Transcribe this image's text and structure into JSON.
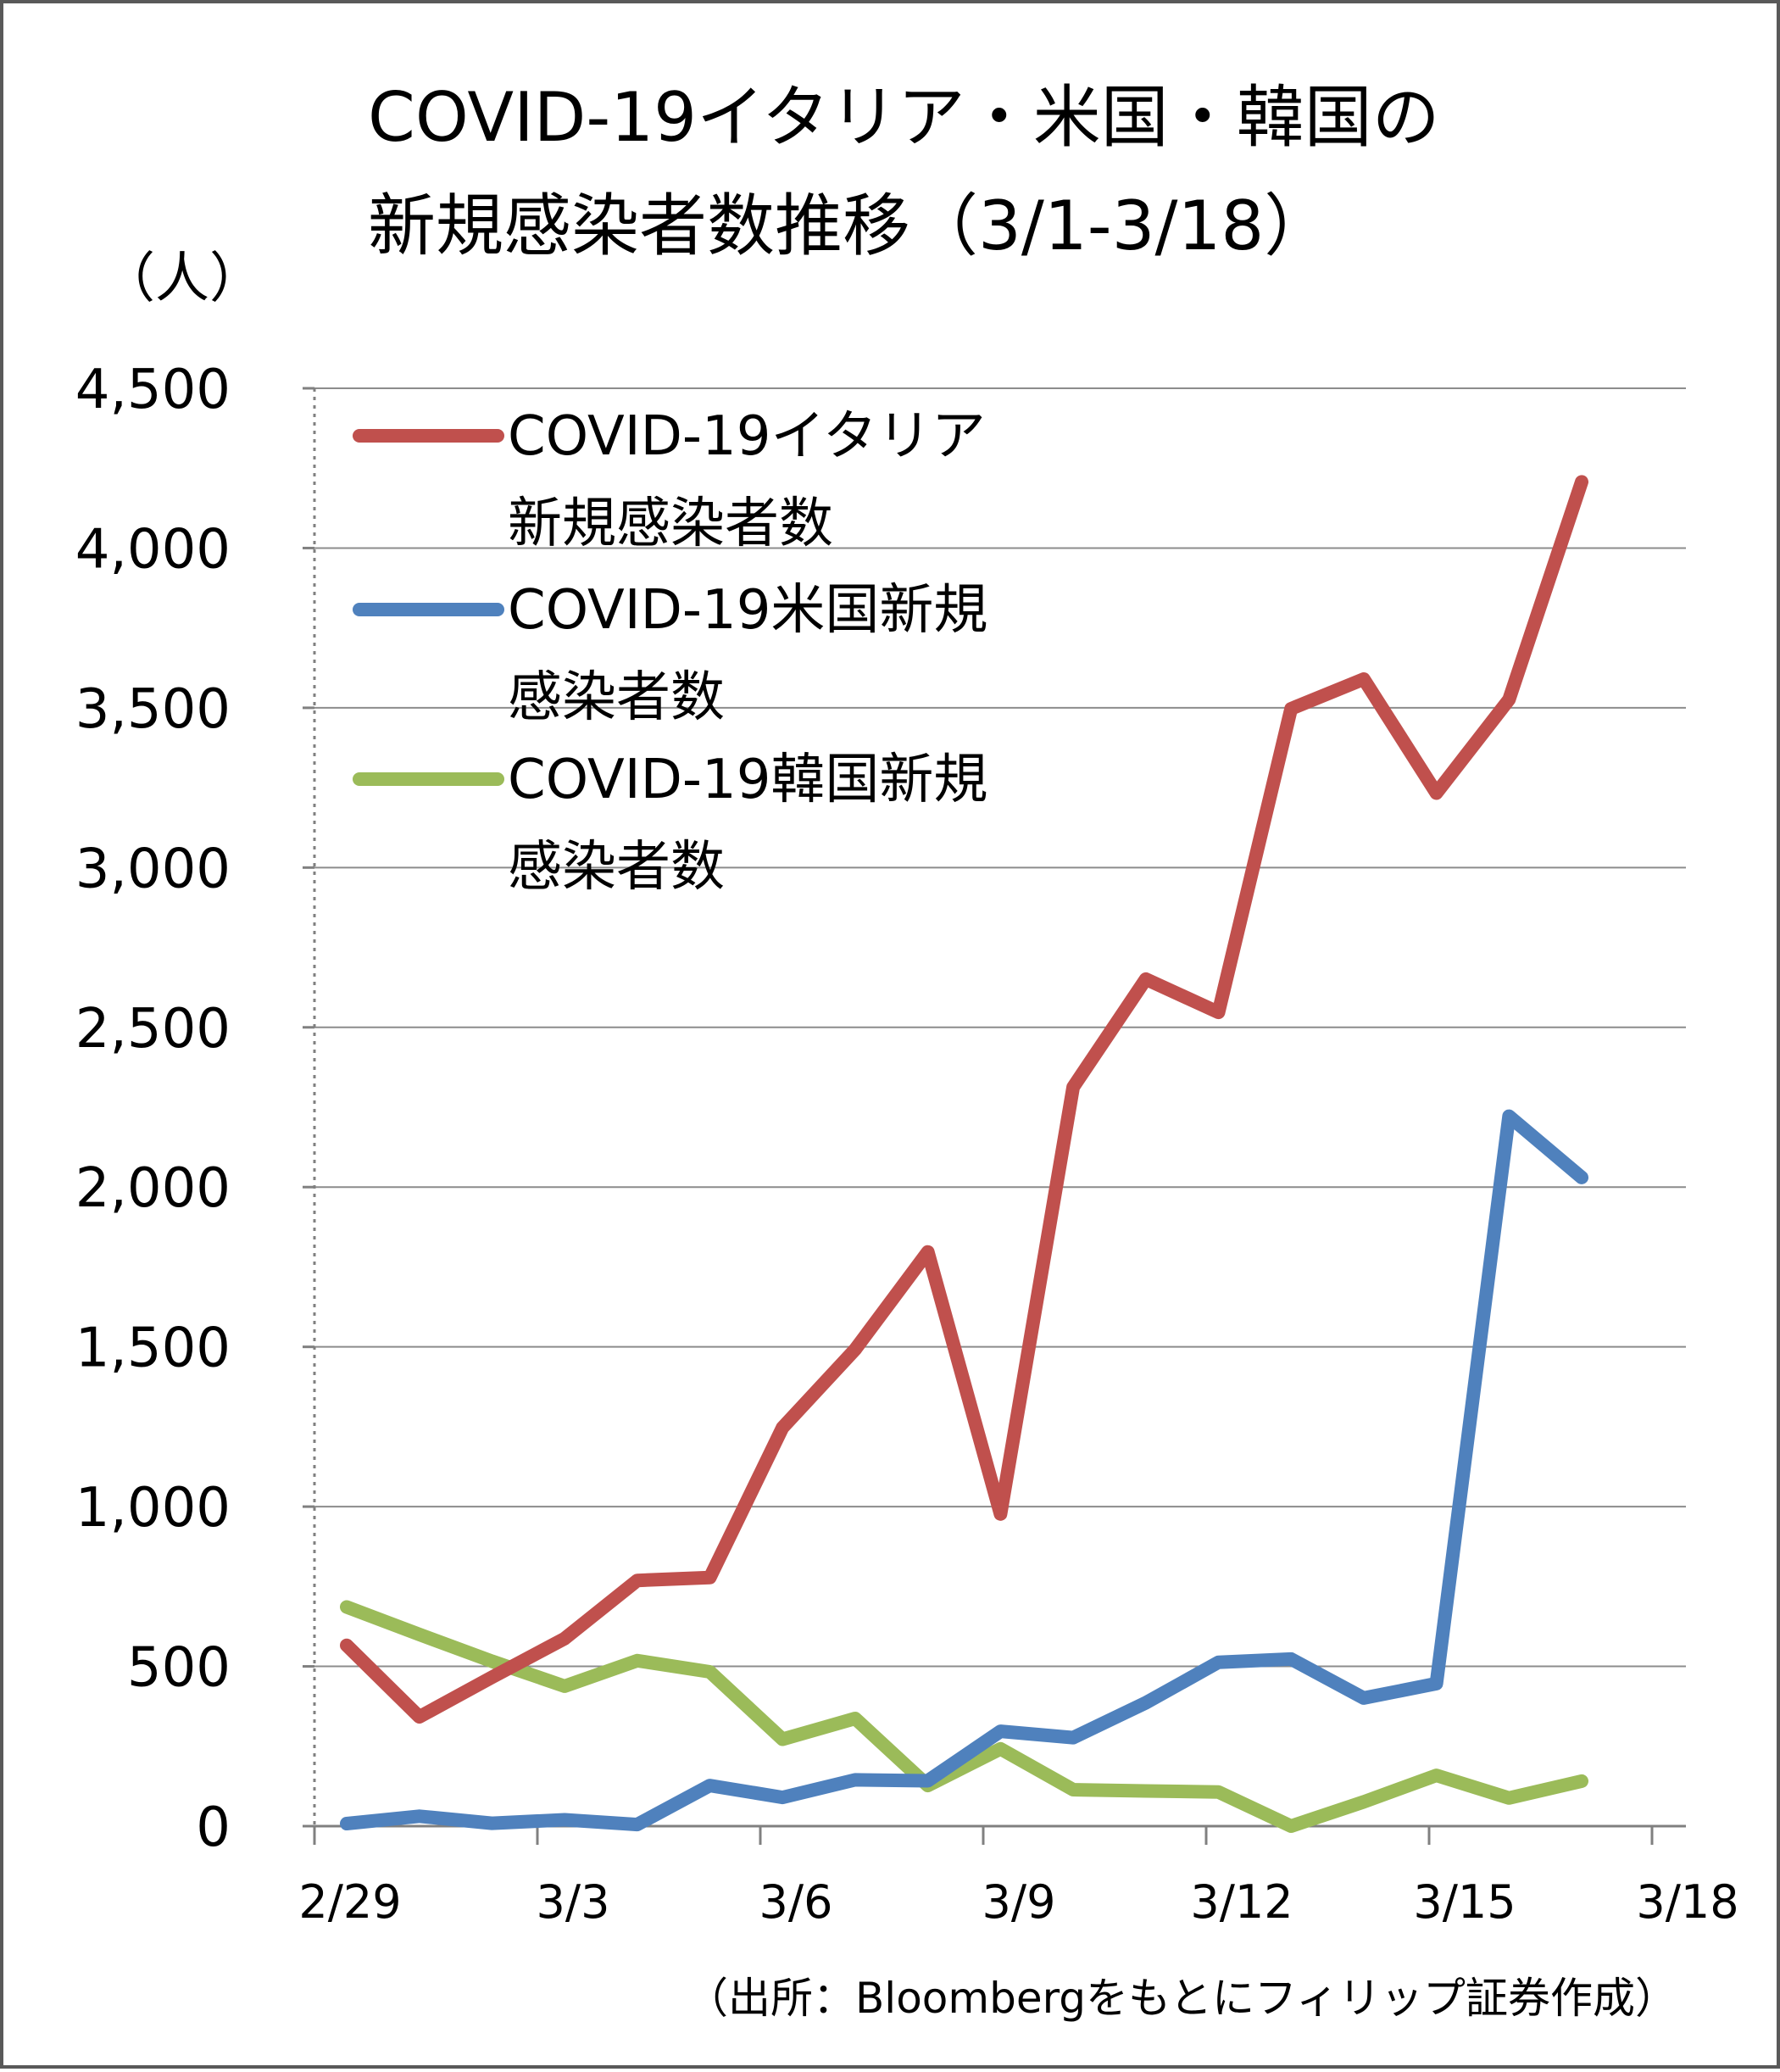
{
  "chart_data": {
    "type": "line",
    "title": "COVID-19イタリア・米国・韓国の新規感染者数推移（3/1-3/18）",
    "title_lines": [
      "COVID-19イタリア・米国・韓国の",
      "新規感染者数推移（3/1-3/18）"
    ],
    "ylabel": "（人）",
    "xlabel": "",
    "source": "（出所：Bloombergをもとにフィリップ証券作成）",
    "ylim": [
      0,
      4500
    ],
    "yticks": [
      0,
      500,
      1000,
      1500,
      2000,
      2500,
      3000,
      3500,
      4000,
      4500
    ],
    "ytick_labels": [
      "0",
      "500",
      "1,000",
      "1,500",
      "2,000",
      "2,500",
      "3,000",
      "3,500",
      "4,000",
      "4,500"
    ],
    "x": [
      "3/1",
      "3/2",
      "3/3",
      "3/4",
      "3/5",
      "3/6",
      "3/7",
      "3/8",
      "3/9",
      "3/10",
      "3/11",
      "3/12",
      "3/13",
      "3/14",
      "3/15",
      "3/16",
      "3/17",
      "3/18"
    ],
    "xtick_labels": [
      "2/29",
      "3/3",
      "3/6",
      "3/9",
      "3/12",
      "3/15",
      "3/18"
    ],
    "grid": true,
    "legend_position": "top-left",
    "series": [
      {
        "name": "COVID-19イタリア新規感染者数",
        "legend_lines": [
          "COVID-19イタリア",
          "新規感染者数"
        ],
        "color": "#c0504d",
        "values": [
          566,
          342,
          466,
          587,
          769,
          778,
          1247,
          1492,
          1797,
          977,
          2313,
          2651,
          2547,
          3497,
          3590,
          3233,
          3526,
          4207
        ]
      },
      {
        "name": "COVID-19米国新規感染者数",
        "legend_lines": [
          "COVID-19米国新規",
          "感染者数"
        ],
        "color": "#4f81bd",
        "values": [
          8,
          31,
          9,
          20,
          5,
          127,
          90,
          145,
          142,
          297,
          277,
          386,
          513,
          523,
          401,
          446,
          2222,
          2030
        ]
      },
      {
        "name": "COVID-19韓国新規感染者数",
        "legend_lines": [
          "COVID-19韓国新規",
          "感染者数"
        ],
        "color": "#9bbb59",
        "values": [
          686,
          600,
          516,
          438,
          518,
          483,
          272,
          337,
          127,
          242,
          114,
          110,
          107,
          0,
          76,
          159,
          88,
          141
        ]
      }
    ]
  }
}
